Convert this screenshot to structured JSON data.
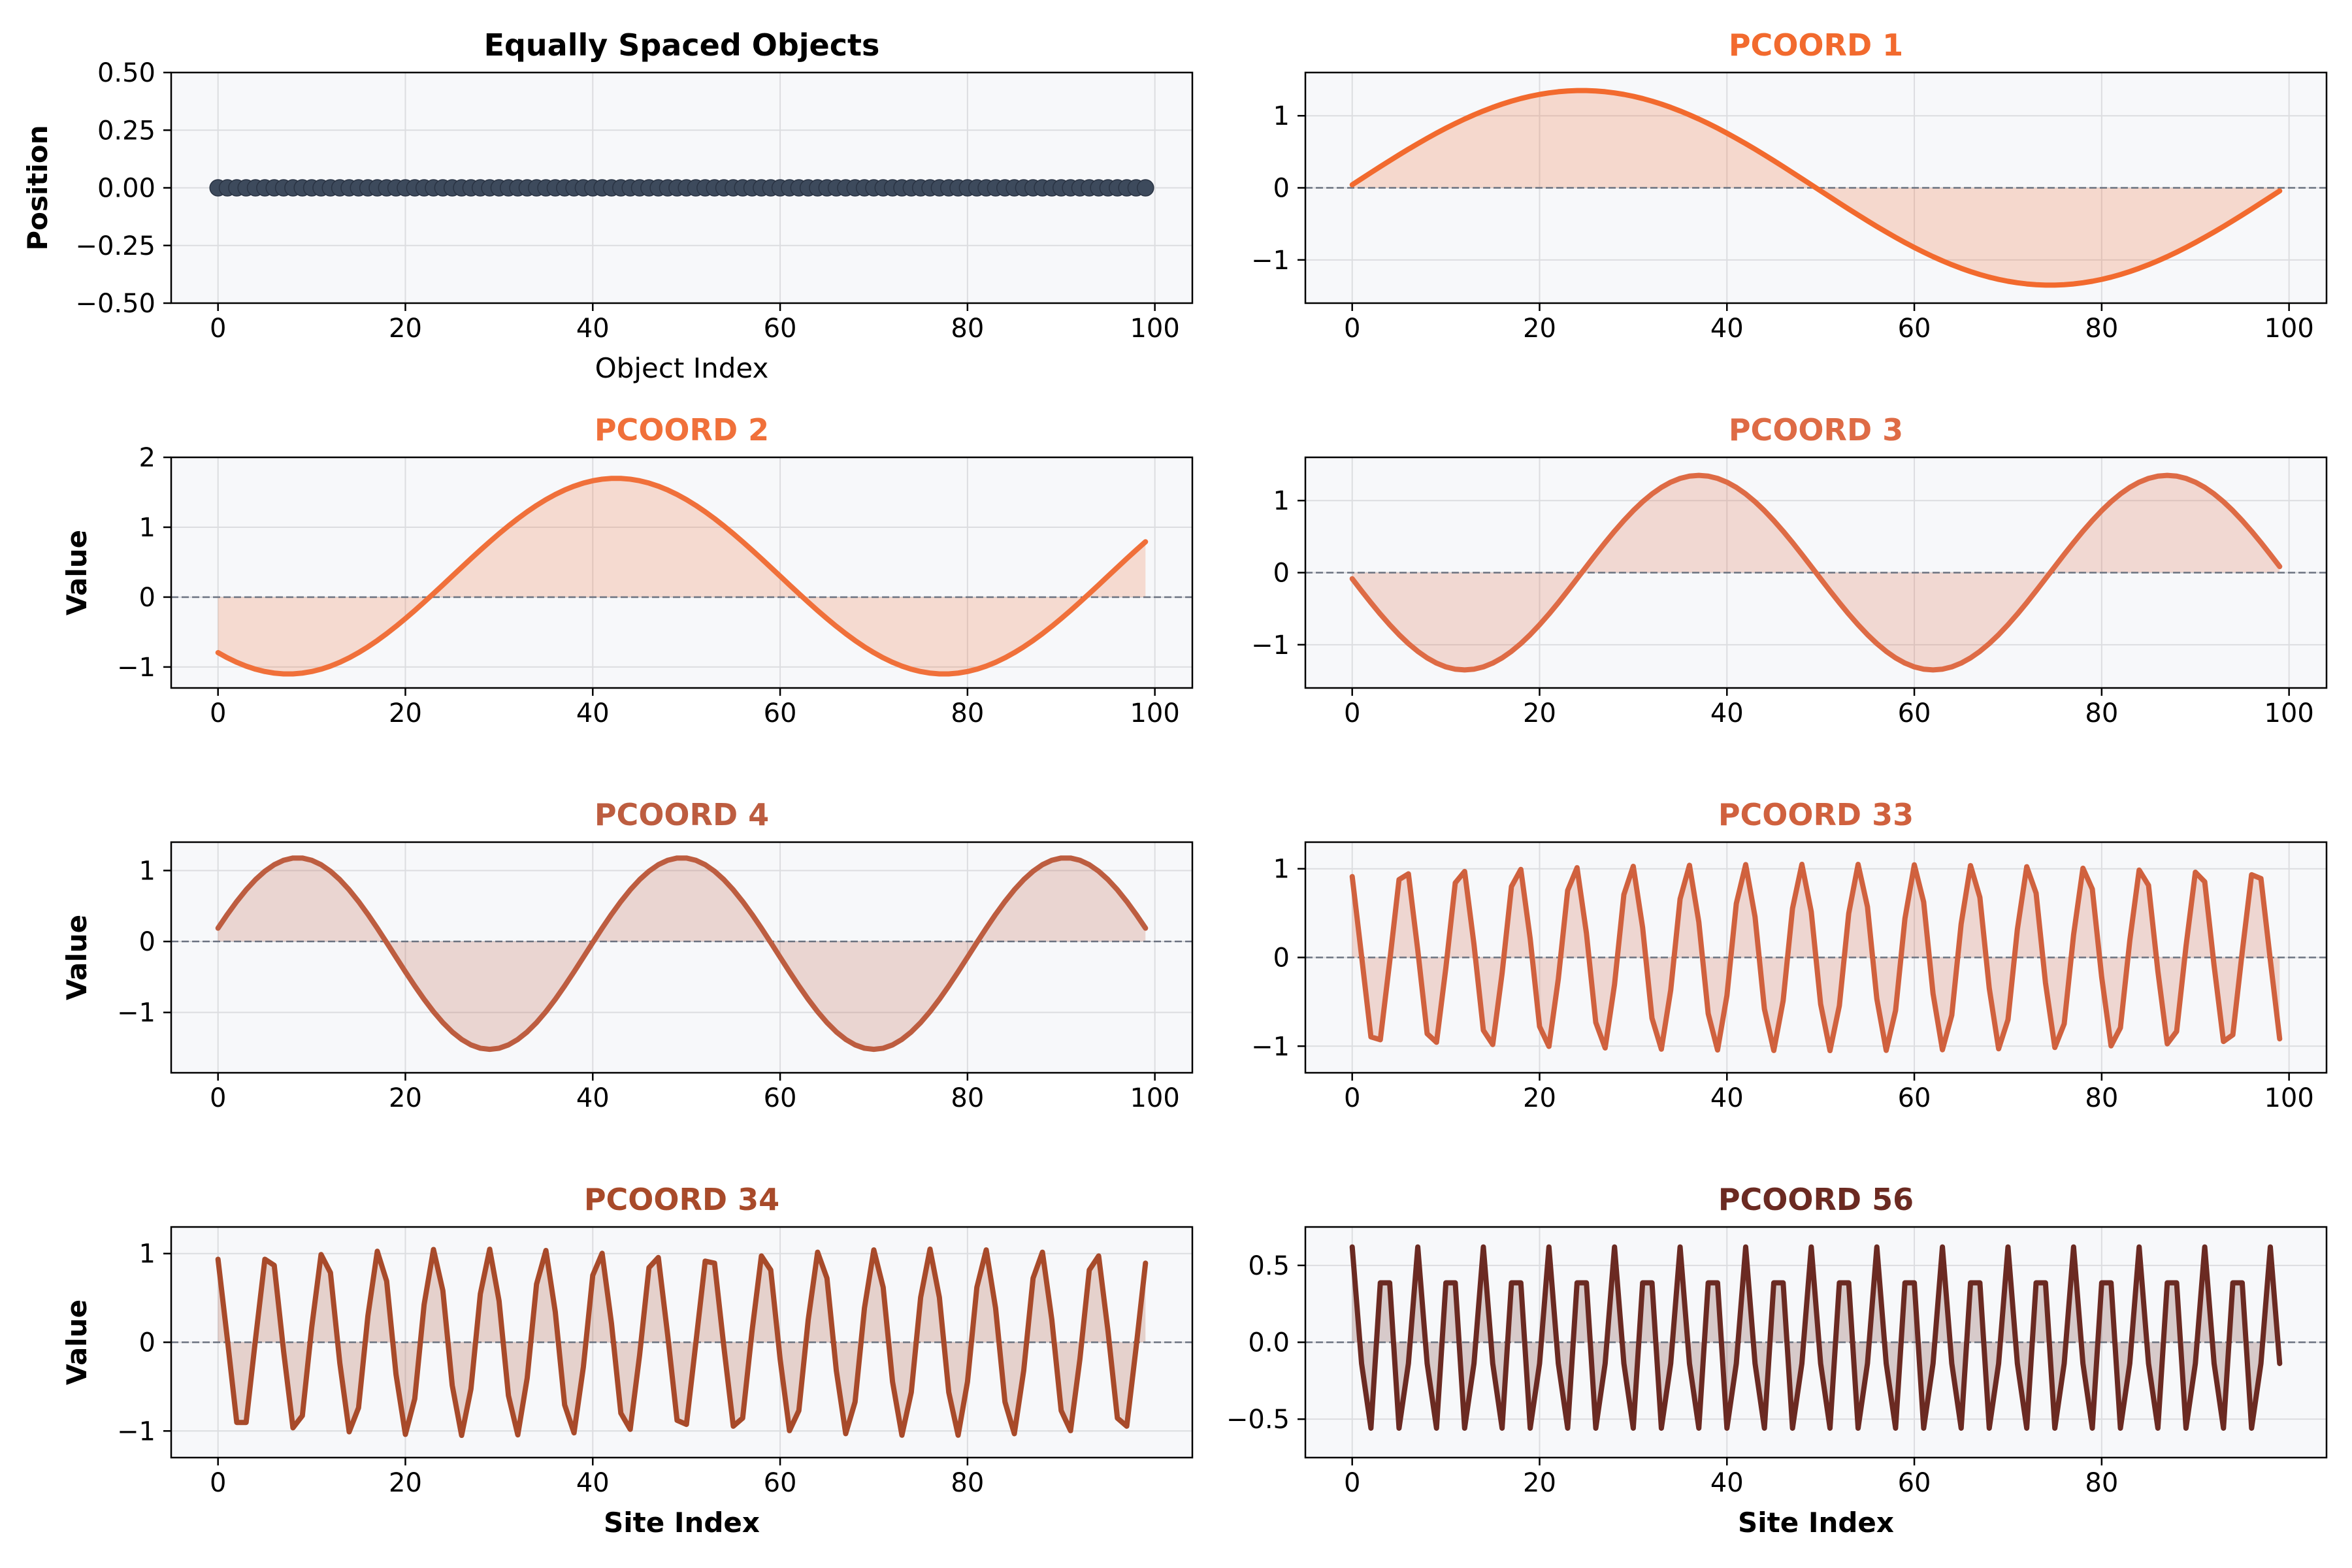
{
  "chart_data": [
    {
      "type": "scatter",
      "title": "Equally Spaced Objects",
      "xlabel": "Object Index",
      "ylabel": "Position",
      "xlim": [
        -5,
        104
      ],
      "ylim": [
        -0.5,
        0.5
      ],
      "xticks": [
        0,
        20,
        40,
        60,
        80,
        100
      ],
      "yticks": [
        -0.5,
        -0.25,
        0.0,
        0.25,
        0.5
      ],
      "ytick_labels": [
        "−0.50",
        "−0.25",
        "0.00",
        "0.25",
        "0.50"
      ],
      "n_points": 100,
      "x_start": 0,
      "x_step": 1,
      "y_constant": 0.0,
      "color": "#3d4a5c",
      "grid": true,
      "legend": "none"
    },
    {
      "type": "area",
      "title": "PCOORD 1",
      "xlabel": "",
      "ylabel": "",
      "color": "#f26a2e",
      "xlim": [
        -5,
        104
      ],
      "ylim": [
        -1.6,
        1.6
      ],
      "xticks": [
        0,
        20,
        40,
        60,
        80,
        100
      ],
      "yticks": [
        -1,
        0,
        1
      ],
      "ytick_labels": [
        "−1",
        "0",
        "1"
      ],
      "n": 100,
      "amplitude": 1.35,
      "period": 100,
      "phase": 0,
      "shape": "sine",
      "grid": true,
      "zero_line": true
    },
    {
      "type": "area",
      "title": "PCOORD 2",
      "xlabel": "",
      "ylabel": "Value",
      "color": "#f0703a",
      "xlim": [
        -5,
        104
      ],
      "ylim": [
        -1.3,
        2.0
      ],
      "xticks": [
        0,
        20,
        40,
        60,
        80,
        100
      ],
      "yticks": [
        -1,
        0,
        1,
        2
      ],
      "ytick_labels": [
        "−1",
        "0",
        "1",
        "2"
      ],
      "n": 100,
      "amplitude": 1.4,
      "offset": 0.3,
      "period": 70,
      "phase": 7.5,
      "shape": "neg-cosine",
      "grid": true,
      "zero_line": true
    },
    {
      "type": "area",
      "title": "PCOORD 3",
      "xlabel": "",
      "ylabel": "",
      "color": "#de6b45",
      "xlim": [
        -5,
        104
      ],
      "ylim": [
        -1.6,
        1.6
      ],
      "xticks": [
        0,
        20,
        40,
        60,
        80,
        100
      ],
      "yticks": [
        -1,
        0,
        1
      ],
      "ytick_labels": [
        "−1",
        "0",
        "1"
      ],
      "n": 100,
      "amplitude": 1.35,
      "period": 50,
      "phase": 0.5,
      "shape": "neg-sine",
      "grid": true,
      "zero_line": true
    },
    {
      "type": "area",
      "title": "PCOORD 4",
      "xlabel": "",
      "ylabel": "Value",
      "color": "#bd5d40",
      "xlim": [
        -5,
        104
      ],
      "ylim": [
        -1.85,
        1.4
      ],
      "xticks": [
        0,
        20,
        40,
        60,
        80,
        100
      ],
      "yticks": [
        -1,
        0,
        1
      ],
      "ytick_labels": [
        "−1",
        "0",
        "1"
      ],
      "n": 100,
      "amplitude": 1.35,
      "offset": -0.17,
      "period": 41,
      "phase": 8.5,
      "shape": "cosine",
      "grid": true,
      "zero_line": true
    },
    {
      "type": "area",
      "title": "PCOORD 33",
      "xlabel": "",
      "ylabel": "",
      "color": "#d0613e",
      "xlim": [
        -5,
        104
      ],
      "ylim": [
        -1.3,
        1.3
      ],
      "xticks": [
        0,
        20,
        40,
        60,
        80,
        100
      ],
      "yticks": [
        -1,
        0,
        1
      ],
      "ytick_labels": [
        "−1",
        "0",
        "1"
      ],
      "n": 100,
      "amplitude": 1.05,
      "period": 6.06,
      "phase": -0.5,
      "shape": "cosine",
      "grid": true,
      "zero_line": true
    },
    {
      "type": "area",
      "title": "PCOORD 34",
      "xlabel": "Site Index",
      "ylabel": "Value",
      "color": "#a84a2a",
      "xlim": [
        -5,
        104
      ],
      "ylim": [
        -1.3,
        1.3
      ],
      "xticks": [
        0,
        20,
        40,
        60,
        80
      ],
      "yticks": [
        -1,
        0,
        1
      ],
      "ytick_labels": [
        "−1",
        "0",
        "1"
      ],
      "n": 100,
      "amplitude": 1.05,
      "period": 5.88,
      "phase": 2.5,
      "shape": "neg-cosine",
      "grid": true,
      "zero_line": true
    },
    {
      "type": "area",
      "title": "PCOORD 56",
      "xlabel": "Site Index",
      "ylabel": "",
      "color": "#6b2a22",
      "xlim": [
        -5,
        104
      ],
      "ylim": [
        -0.75,
        0.75
      ],
      "xticks": [
        0,
        20,
        40,
        60,
        80
      ],
      "yticks": [
        -0.5,
        0.0,
        0.5
      ],
      "ytick_labels": [
        "−0.5",
        "0.0",
        "0.5"
      ],
      "n": 100,
      "amplitude": 0.62,
      "period": 3.5,
      "phase": 0,
      "shape": "cosine",
      "grid": true,
      "zero_line": true
    }
  ]
}
